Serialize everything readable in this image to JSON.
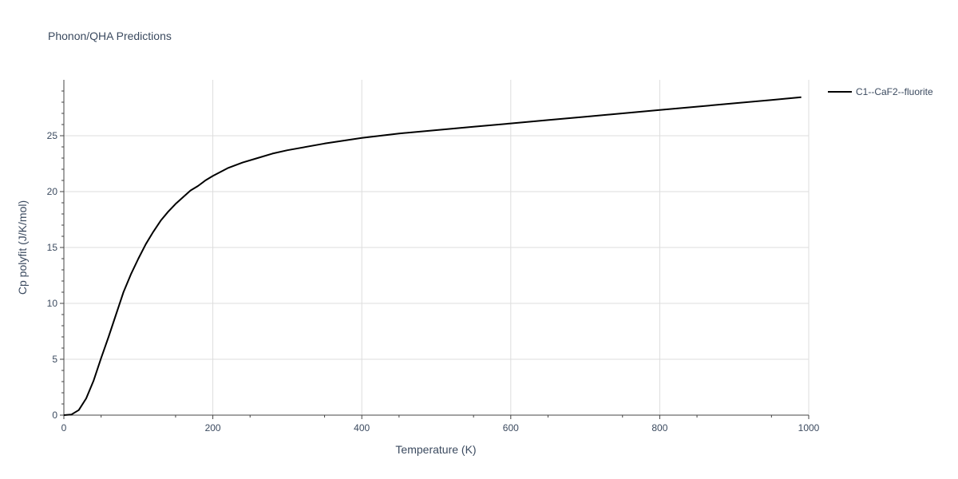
{
  "chart_data": {
    "type": "line",
    "title": "Phonon/QHA Predictions",
    "xlabel": "Temperature (K)",
    "ylabel": "Cp polyfit (J/K/mol)",
    "xlim": [
      0,
      1000
    ],
    "ylim": [
      0,
      30
    ],
    "x_ticks": [
      0,
      200,
      400,
      600,
      800,
      1000
    ],
    "x_tick_labels": [
      "0",
      "200",
      "400",
      "600",
      "800",
      "1000"
    ],
    "y_ticks": [
      0,
      5,
      10,
      15,
      20,
      25
    ],
    "y_tick_labels": [
      "0",
      "5",
      "10",
      "15",
      "20",
      "25"
    ],
    "grid": true,
    "legend_position": "top-right, outside plot",
    "colors": {
      "line": "#000000",
      "grid": "#dddddd",
      "axis": "#444444",
      "text": "#3b4a5f"
    },
    "series": [
      {
        "name": "C1--CaF2--fluorite",
        "x": [
          0,
          10,
          20,
          30,
          40,
          50,
          60,
          70,
          80,
          90,
          100,
          110,
          120,
          130,
          140,
          150,
          160,
          170,
          180,
          190,
          200,
          220,
          240,
          260,
          280,
          300,
          350,
          400,
          450,
          500,
          550,
          600,
          650,
          700,
          750,
          800,
          850,
          900,
          950,
          990
        ],
        "values": [
          0,
          0.05,
          0.45,
          1.5,
          3.1,
          5.1,
          7.0,
          9.0,
          11.0,
          12.6,
          14.0,
          15.3,
          16.4,
          17.4,
          18.2,
          18.9,
          19.5,
          20.1,
          20.5,
          21.0,
          21.4,
          22.1,
          22.6,
          23.0,
          23.4,
          23.7,
          24.3,
          24.8,
          25.2,
          25.5,
          25.8,
          26.1,
          26.4,
          26.7,
          27.0,
          27.3,
          27.6,
          27.9,
          28.2,
          28.45
        ]
      }
    ]
  }
}
